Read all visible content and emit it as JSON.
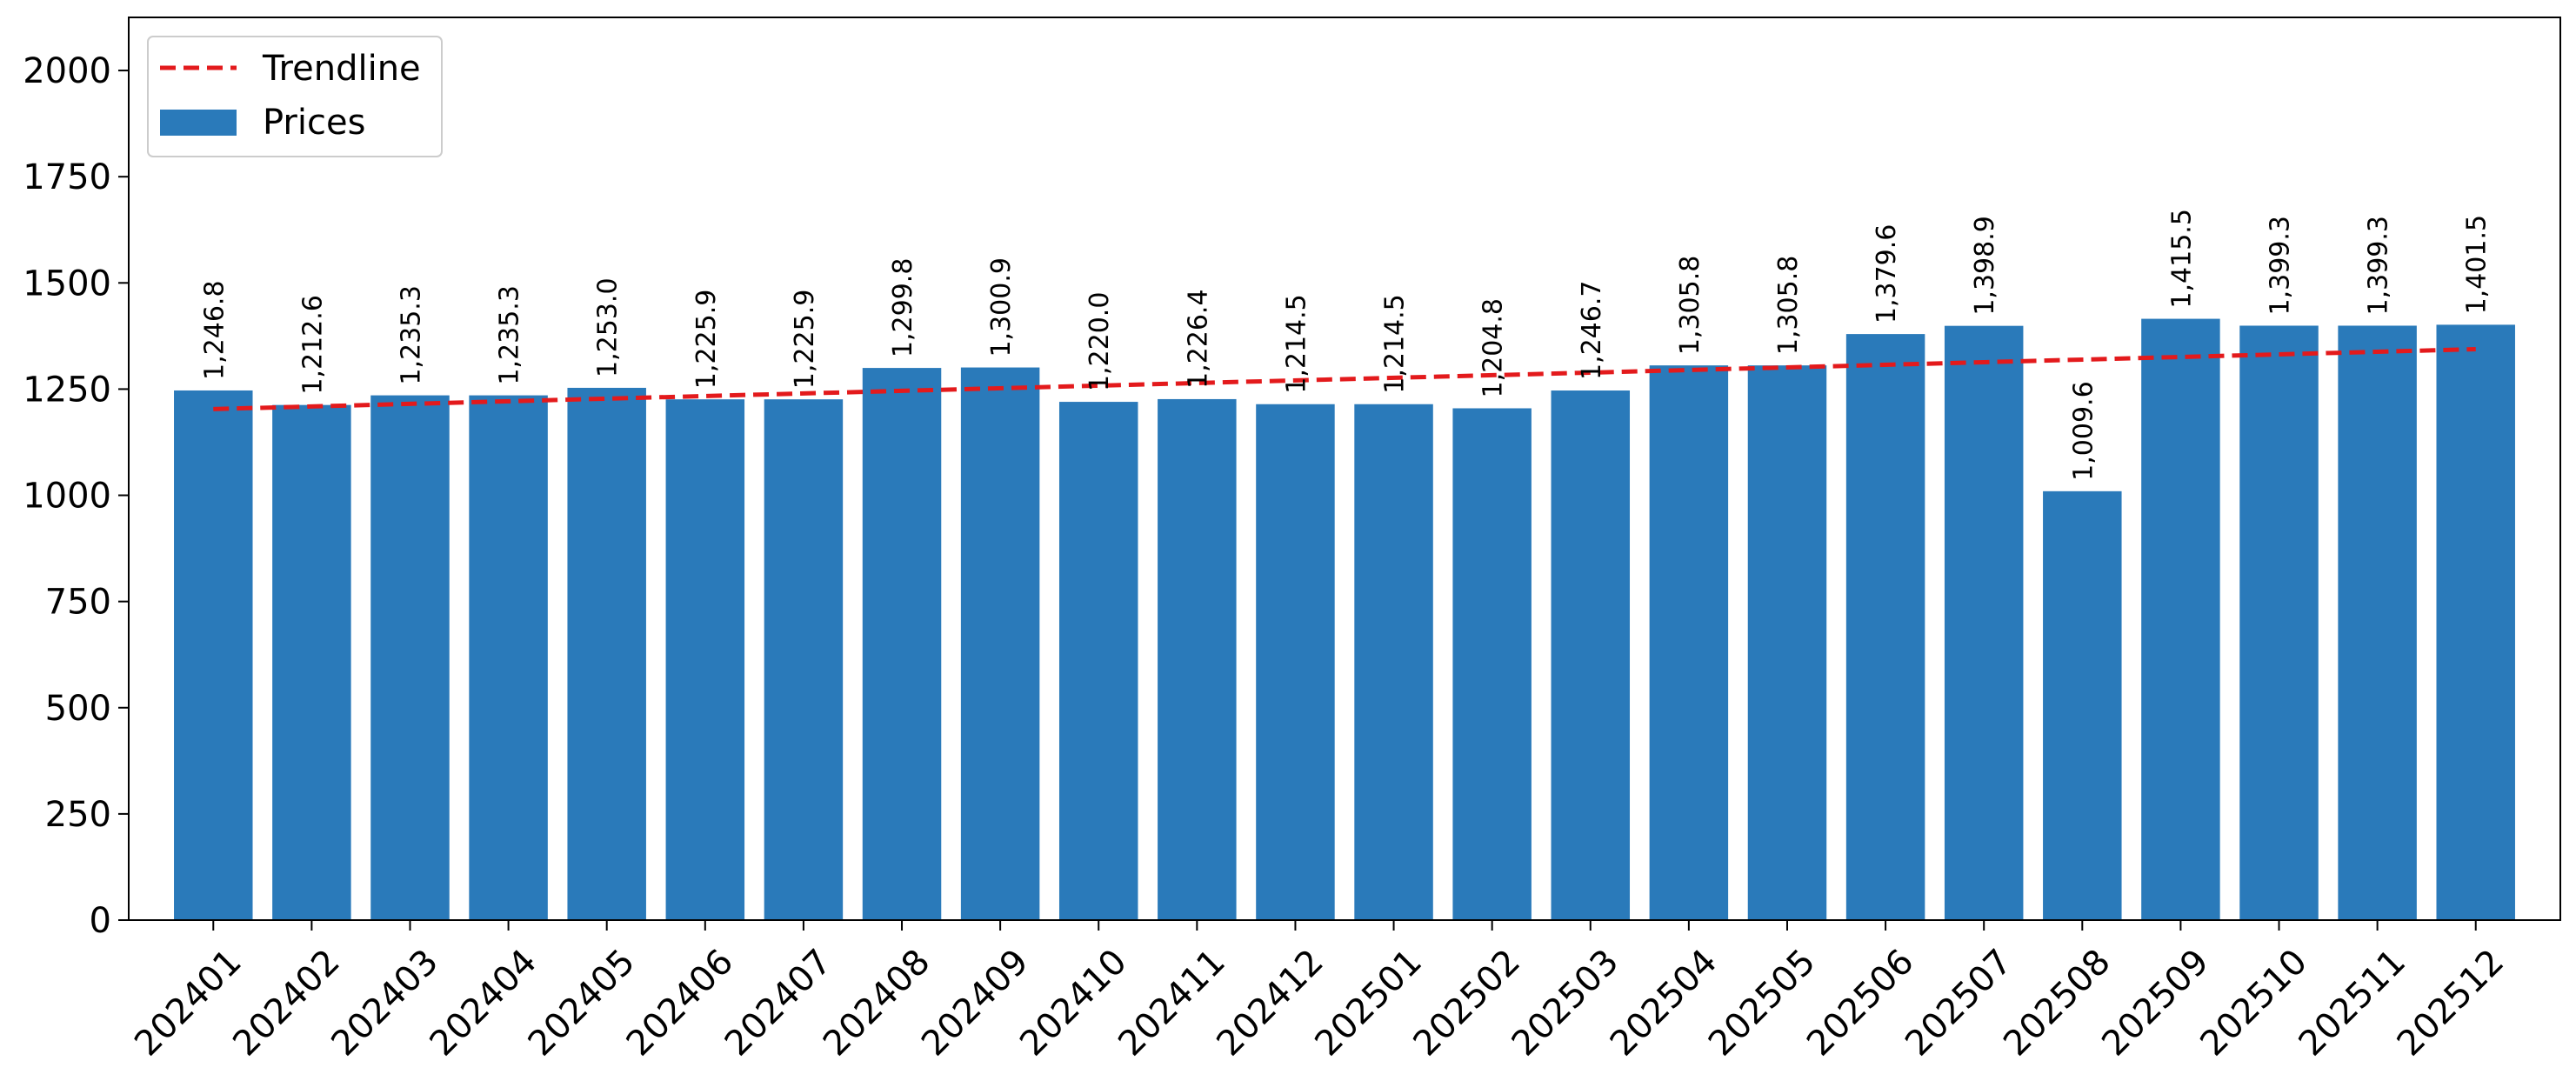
{
  "chart_data": {
    "type": "bar",
    "title": "",
    "xlabel": "",
    "ylabel": "",
    "categories": [
      "202401",
      "202402",
      "202403",
      "202404",
      "202405",
      "202406",
      "202407",
      "202408",
      "202409",
      "202410",
      "202411",
      "202412",
      "202501",
      "202502",
      "202503",
      "202504",
      "202505",
      "202506",
      "202507",
      "202508",
      "202509",
      "202510",
      "202511",
      "202512"
    ],
    "series": [
      {
        "name": "Prices",
        "color": "#2a7aba",
        "values": [
          1246.8,
          1212.6,
          1235.3,
          1235.3,
          1253.0,
          1225.9,
          1225.9,
          1299.8,
          1300.9,
          1220.0,
          1226.4,
          1214.5,
          1214.5,
          1204.8,
          1246.7,
          1305.8,
          1305.8,
          1379.6,
          1398.9,
          1009.6,
          1415.5,
          1399.3,
          1399.3,
          1401.5
        ],
        "data_labels": [
          "1,246.8",
          "1,212.6",
          "1,235.3",
          "1,235.3",
          "1,253.0",
          "1,225.9",
          "1,225.9",
          "1,299.8",
          "1,300.9",
          "1,220.0",
          "1,226.4",
          "1,214.5",
          "1,214.5",
          "1,204.8",
          "1,246.7",
          "1,305.8",
          "1,305.8",
          "1,379.6",
          "1,398.9",
          "1,009.6",
          "1,415.5",
          "1,399.3",
          "1,399.3",
          "1,401.5"
        ]
      }
    ],
    "trendline": {
      "name": "Trendline",
      "color": "#e31a1c",
      "style": "dashed",
      "start": 1203,
      "end": 1344
    },
    "ylim": [
      0,
      2125
    ],
    "yticks": [
      0,
      250,
      500,
      750,
      1000,
      1250,
      1500,
      1750,
      2000
    ],
    "legend": {
      "placement": "top-left",
      "entries": [
        {
          "label": "Trendline",
          "kind": "line"
        },
        {
          "label": "Prices",
          "kind": "bar"
        }
      ]
    },
    "grid": false
  }
}
